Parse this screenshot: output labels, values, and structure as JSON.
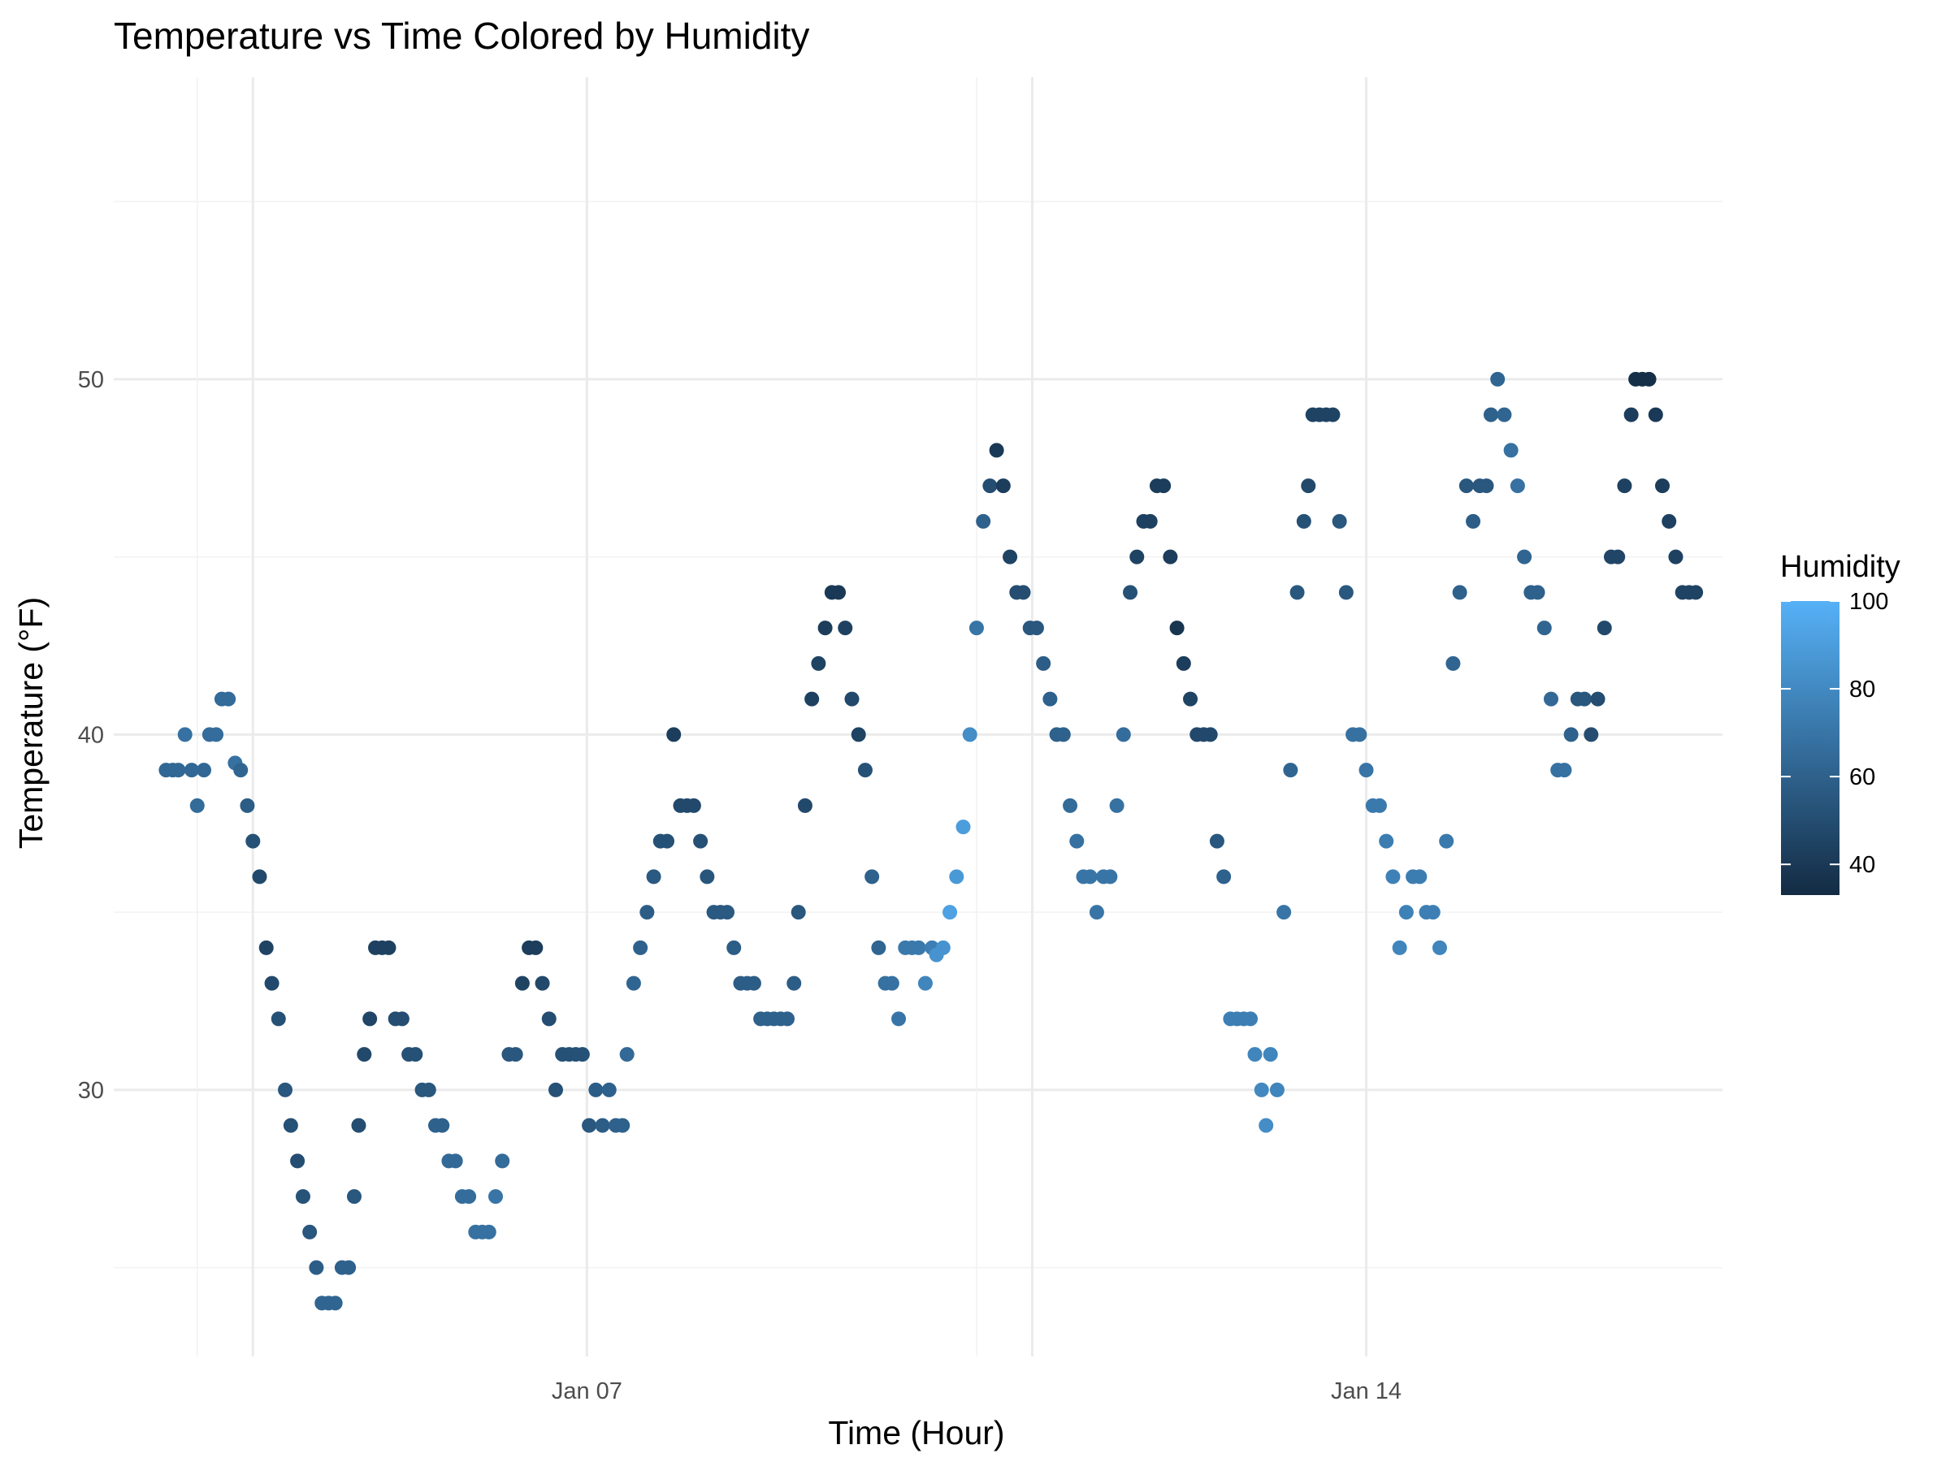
{
  "chart_data": {
    "type": "scatter",
    "title": "Temperature vs Time Colored by Humidity",
    "xlabel": "Time (Hour)",
    "ylabel": "Temperature (°F)",
    "x_ticks": [
      "Jan 07",
      "Jan 14"
    ],
    "y_ticks": [
      30,
      40,
      50
    ],
    "color_legend": {
      "title": "Humidity",
      "ticks": [
        40,
        60,
        80,
        100
      ],
      "range": [
        33,
        100
      ],
      "low_color": "#132B43",
      "high_color": "#56B1F7"
    },
    "grid": true,
    "legend_position": "right",
    "x_unit": "day of January",
    "xlim": [
      2.75,
      17.2
    ],
    "ylim": [
      22.5,
      58.5
    ],
    "points": [
      {
        "x": 3.22,
        "y": 39,
        "h": 63
      },
      {
        "x": 3.28,
        "y": 39,
        "h": 63
      },
      {
        "x": 3.33,
        "y": 39,
        "h": 63
      },
      {
        "x": 3.39,
        "y": 40,
        "h": 68
      },
      {
        "x": 3.45,
        "y": 39,
        "h": 63
      },
      {
        "x": 3.5,
        "y": 38,
        "h": 65
      },
      {
        "x": 3.56,
        "y": 39,
        "h": 63
      },
      {
        "x": 3.61,
        "y": 40,
        "h": 66
      },
      {
        "x": 3.67,
        "y": 40,
        "h": 66
      },
      {
        "x": 3.72,
        "y": 41,
        "h": 65
      },
      {
        "x": 3.78,
        "y": 41,
        "h": 65
      },
      {
        "x": 3.84,
        "y": 39.2,
        "h": 68
      },
      {
        "x": 3.89,
        "y": 39,
        "h": 62
      },
      {
        "x": 3.95,
        "y": 38,
        "h": 58
      },
      {
        "x": 4,
        "y": 37,
        "h": 52
      },
      {
        "x": 4.06,
        "y": 36,
        "h": 48
      },
      {
        "x": 4.12,
        "y": 34,
        "h": 45
      },
      {
        "x": 4.17,
        "y": 33,
        "h": 48
      },
      {
        "x": 4.23,
        "y": 32,
        "h": 52
      },
      {
        "x": 4.29,
        "y": 30,
        "h": 55
      },
      {
        "x": 4.34,
        "y": 29,
        "h": 52
      },
      {
        "x": 4.4,
        "y": 28,
        "h": 50
      },
      {
        "x": 4.45,
        "y": 27,
        "h": 53
      },
      {
        "x": 4.51,
        "y": 26,
        "h": 55
      },
      {
        "x": 4.57,
        "y": 25,
        "h": 58
      },
      {
        "x": 4.62,
        "y": 24,
        "h": 62
      },
      {
        "x": 4.68,
        "y": 24,
        "h": 62
      },
      {
        "x": 4.74,
        "y": 24,
        "h": 62
      },
      {
        "x": 4.8,
        "y": 25,
        "h": 60
      },
      {
        "x": 4.86,
        "y": 25,
        "h": 60
      },
      {
        "x": 4.91,
        "y": 27,
        "h": 55
      },
      {
        "x": 4.95,
        "y": 29,
        "h": 50
      },
      {
        "x": 5,
        "y": 31,
        "h": 48
      },
      {
        "x": 5.05,
        "y": 32,
        "h": 46
      },
      {
        "x": 5.1,
        "y": 34,
        "h": 44
      },
      {
        "x": 5.16,
        "y": 34,
        "h": 44
      },
      {
        "x": 5.22,
        "y": 34,
        "h": 44
      },
      {
        "x": 5.28,
        "y": 32,
        "h": 50
      },
      {
        "x": 5.34,
        "y": 32,
        "h": 50
      },
      {
        "x": 5.4,
        "y": 31,
        "h": 52
      },
      {
        "x": 5.46,
        "y": 31,
        "h": 52
      },
      {
        "x": 5.52,
        "y": 30,
        "h": 55
      },
      {
        "x": 5.58,
        "y": 30,
        "h": 55
      },
      {
        "x": 5.64,
        "y": 29,
        "h": 60
      },
      {
        "x": 5.7,
        "y": 29,
        "h": 60
      },
      {
        "x": 5.76,
        "y": 28,
        "h": 64
      },
      {
        "x": 5.82,
        "y": 28,
        "h": 64
      },
      {
        "x": 5.88,
        "y": 27,
        "h": 66
      },
      {
        "x": 5.94,
        "y": 27,
        "h": 66
      },
      {
        "x": 6,
        "y": 26,
        "h": 68
      },
      {
        "x": 6.06,
        "y": 26,
        "h": 68
      },
      {
        "x": 6.12,
        "y": 26,
        "h": 68
      },
      {
        "x": 6.18,
        "y": 27,
        "h": 70
      },
      {
        "x": 6.24,
        "y": 28,
        "h": 65
      },
      {
        "x": 6.3,
        "y": 31,
        "h": 55
      },
      {
        "x": 6.36,
        "y": 31,
        "h": 55
      },
      {
        "x": 6.42,
        "y": 33,
        "h": 45
      },
      {
        "x": 6.48,
        "y": 34,
        "h": 42
      },
      {
        "x": 6.54,
        "y": 34,
        "h": 42
      },
      {
        "x": 6.6,
        "y": 33,
        "h": 48
      },
      {
        "x": 6.66,
        "y": 32,
        "h": 50
      },
      {
        "x": 6.72,
        "y": 30,
        "h": 52
      },
      {
        "x": 6.78,
        "y": 31,
        "h": 52
      },
      {
        "x": 6.84,
        "y": 31,
        "h": 52
      },
      {
        "x": 6.9,
        "y": 31,
        "h": 52
      },
      {
        "x": 6.96,
        "y": 31,
        "h": 52
      },
      {
        "x": 7.02,
        "y": 29,
        "h": 55
      },
      {
        "x": 7.08,
        "y": 30,
        "h": 58
      },
      {
        "x": 7.14,
        "y": 29,
        "h": 58
      },
      {
        "x": 7.2,
        "y": 30,
        "h": 60
      },
      {
        "x": 7.26,
        "y": 29,
        "h": 60
      },
      {
        "x": 7.32,
        "y": 29,
        "h": 60
      },
      {
        "x": 7.36,
        "y": 31,
        "h": 64
      },
      {
        "x": 7.42,
        "y": 33,
        "h": 62
      },
      {
        "x": 7.48,
        "y": 34,
        "h": 60
      },
      {
        "x": 7.54,
        "y": 35,
        "h": 58
      },
      {
        "x": 7.6,
        "y": 36,
        "h": 56
      },
      {
        "x": 7.66,
        "y": 37,
        "h": 52
      },
      {
        "x": 7.72,
        "y": 37,
        "h": 52
      },
      {
        "x": 7.78,
        "y": 40,
        "h": 42
      },
      {
        "x": 7.84,
        "y": 38,
        "h": 48
      },
      {
        "x": 7.9,
        "y": 38,
        "h": 48
      },
      {
        "x": 7.96,
        "y": 38,
        "h": 48
      },
      {
        "x": 8.02,
        "y": 37,
        "h": 52
      },
      {
        "x": 8.08,
        "y": 36,
        "h": 54
      },
      {
        "x": 8.14,
        "y": 35,
        "h": 56
      },
      {
        "x": 8.2,
        "y": 35,
        "h": 56
      },
      {
        "x": 8.26,
        "y": 35,
        "h": 56
      },
      {
        "x": 8.32,
        "y": 34,
        "h": 58
      },
      {
        "x": 8.38,
        "y": 33,
        "h": 58
      },
      {
        "x": 8.44,
        "y": 33,
        "h": 58
      },
      {
        "x": 8.5,
        "y": 33,
        "h": 58
      },
      {
        "x": 8.56,
        "y": 32,
        "h": 60
      },
      {
        "x": 8.62,
        "y": 32,
        "h": 60
      },
      {
        "x": 8.68,
        "y": 32,
        "h": 60
      },
      {
        "x": 8.74,
        "y": 32,
        "h": 60
      },
      {
        "x": 8.8,
        "y": 32,
        "h": 60
      },
      {
        "x": 8.86,
        "y": 33,
        "h": 58
      },
      {
        "x": 8.9,
        "y": 35,
        "h": 55
      },
      {
        "x": 8.96,
        "y": 38,
        "h": 48
      },
      {
        "x": 9.02,
        "y": 41,
        "h": 44
      },
      {
        "x": 9.08,
        "y": 42,
        "h": 45
      },
      {
        "x": 9.14,
        "y": 43,
        "h": 42
      },
      {
        "x": 9.2,
        "y": 44,
        "h": 40
      },
      {
        "x": 9.26,
        "y": 44,
        "h": 40
      },
      {
        "x": 9.32,
        "y": 43,
        "h": 44
      },
      {
        "x": 9.38,
        "y": 41,
        "h": 48
      },
      {
        "x": 9.44,
        "y": 40,
        "h": 45
      },
      {
        "x": 9.5,
        "y": 39,
        "h": 52
      },
      {
        "x": 9.56,
        "y": 36,
        "h": 60
      },
      {
        "x": 9.62,
        "y": 34,
        "h": 62
      },
      {
        "x": 9.68,
        "y": 33,
        "h": 68
      },
      {
        "x": 9.74,
        "y": 33,
        "h": 68
      },
      {
        "x": 9.8,
        "y": 32,
        "h": 70
      },
      {
        "x": 9.86,
        "y": 34,
        "h": 72
      },
      {
        "x": 9.92,
        "y": 34,
        "h": 72
      },
      {
        "x": 9.98,
        "y": 34,
        "h": 72
      },
      {
        "x": 10.04,
        "y": 33,
        "h": 78
      },
      {
        "x": 10.1,
        "y": 34,
        "h": 75
      },
      {
        "x": 10.14,
        "y": 33.8,
        "h": 85
      },
      {
        "x": 10.2,
        "y": 34,
        "h": 85
      },
      {
        "x": 10.26,
        "y": 35,
        "h": 92
      },
      {
        "x": 10.32,
        "y": 36,
        "h": 88
      },
      {
        "x": 10.38,
        "y": 37.4,
        "h": 90
      },
      {
        "x": 10.44,
        "y": 40,
        "h": 82
      },
      {
        "x": 10.5,
        "y": 43,
        "h": 70
      },
      {
        "x": 10.56,
        "y": 46,
        "h": 60
      },
      {
        "x": 10.62,
        "y": 47,
        "h": 50
      },
      {
        "x": 10.68,
        "y": 48,
        "h": 40
      },
      {
        "x": 10.74,
        "y": 47,
        "h": 42
      },
      {
        "x": 10.8,
        "y": 45,
        "h": 45
      },
      {
        "x": 10.86,
        "y": 44,
        "h": 50
      },
      {
        "x": 10.92,
        "y": 44,
        "h": 50
      },
      {
        "x": 10.98,
        "y": 43,
        "h": 55
      },
      {
        "x": 11.04,
        "y": 43,
        "h": 55
      },
      {
        "x": 11.1,
        "y": 42,
        "h": 58
      },
      {
        "x": 11.16,
        "y": 41,
        "h": 60
      },
      {
        "x": 11.22,
        "y": 40,
        "h": 60
      },
      {
        "x": 11.28,
        "y": 40,
        "h": 60
      },
      {
        "x": 11.34,
        "y": 38,
        "h": 65
      },
      {
        "x": 11.4,
        "y": 37,
        "h": 68
      },
      {
        "x": 11.46,
        "y": 36,
        "h": 70
      },
      {
        "x": 11.52,
        "y": 36,
        "h": 70
      },
      {
        "x": 11.58,
        "y": 35,
        "h": 70
      },
      {
        "x": 11.64,
        "y": 36,
        "h": 70
      },
      {
        "x": 11.7,
        "y": 36,
        "h": 70
      },
      {
        "x": 11.76,
        "y": 38,
        "h": 68
      },
      {
        "x": 11.82,
        "y": 40,
        "h": 66
      },
      {
        "x": 11.88,
        "y": 44,
        "h": 52
      },
      {
        "x": 11.94,
        "y": 45,
        "h": 45
      },
      {
        "x": 12,
        "y": 46,
        "h": 44
      },
      {
        "x": 12.06,
        "y": 46,
        "h": 44
      },
      {
        "x": 12.12,
        "y": 47,
        "h": 42
      },
      {
        "x": 12.18,
        "y": 47,
        "h": 42
      },
      {
        "x": 12.24,
        "y": 45,
        "h": 42
      },
      {
        "x": 12.3,
        "y": 43,
        "h": 38
      },
      {
        "x": 12.36,
        "y": 42,
        "h": 42
      },
      {
        "x": 12.42,
        "y": 41,
        "h": 45
      },
      {
        "x": 12.48,
        "y": 40,
        "h": 48
      },
      {
        "x": 12.54,
        "y": 40,
        "h": 48
      },
      {
        "x": 12.6,
        "y": 40,
        "h": 48
      },
      {
        "x": 12.66,
        "y": 37,
        "h": 55
      },
      {
        "x": 12.72,
        "y": 36,
        "h": 60
      },
      {
        "x": 12.78,
        "y": 32,
        "h": 75
      },
      {
        "x": 12.84,
        "y": 32,
        "h": 75
      },
      {
        "x": 12.9,
        "y": 32,
        "h": 75
      },
      {
        "x": 12.96,
        "y": 32,
        "h": 75
      },
      {
        "x": 13,
        "y": 31,
        "h": 78
      },
      {
        "x": 13.06,
        "y": 30,
        "h": 80
      },
      {
        "x": 13.1,
        "y": 29,
        "h": 82
      },
      {
        "x": 13.14,
        "y": 31,
        "h": 78
      },
      {
        "x": 13.2,
        "y": 30,
        "h": 78
      },
      {
        "x": 13.26,
        "y": 35,
        "h": 70
      },
      {
        "x": 13.32,
        "y": 39,
        "h": 62
      },
      {
        "x": 13.38,
        "y": 44,
        "h": 55
      },
      {
        "x": 13.44,
        "y": 46,
        "h": 52
      },
      {
        "x": 13.48,
        "y": 47,
        "h": 48
      },
      {
        "x": 13.52,
        "y": 49,
        "h": 45
      },
      {
        "x": 13.58,
        "y": 49,
        "h": 45
      },
      {
        "x": 13.64,
        "y": 49,
        "h": 45
      },
      {
        "x": 13.7,
        "y": 49,
        "h": 45
      },
      {
        "x": 13.76,
        "y": 46,
        "h": 55
      },
      {
        "x": 13.82,
        "y": 44,
        "h": 55
      },
      {
        "x": 13.88,
        "y": 40,
        "h": 68
      },
      {
        "x": 13.94,
        "y": 40,
        "h": 68
      },
      {
        "x": 14,
        "y": 39,
        "h": 70
      },
      {
        "x": 14.06,
        "y": 38,
        "h": 72
      },
      {
        "x": 14.12,
        "y": 38,
        "h": 72
      },
      {
        "x": 14.18,
        "y": 37,
        "h": 74
      },
      {
        "x": 14.24,
        "y": 36,
        "h": 76
      },
      {
        "x": 14.3,
        "y": 34,
        "h": 78
      },
      {
        "x": 14.36,
        "y": 35,
        "h": 76
      },
      {
        "x": 14.42,
        "y": 36,
        "h": 74
      },
      {
        "x": 14.48,
        "y": 36,
        "h": 74
      },
      {
        "x": 14.54,
        "y": 35,
        "h": 75
      },
      {
        "x": 14.6,
        "y": 35,
        "h": 75
      },
      {
        "x": 14.66,
        "y": 34,
        "h": 78
      },
      {
        "x": 14.72,
        "y": 37,
        "h": 72
      },
      {
        "x": 14.78,
        "y": 42,
        "h": 62
      },
      {
        "x": 14.84,
        "y": 44,
        "h": 60
      },
      {
        "x": 14.9,
        "y": 47,
        "h": 55
      },
      {
        "x": 14.96,
        "y": 46,
        "h": 58
      },
      {
        "x": 15.02,
        "y": 47,
        "h": 55
      },
      {
        "x": 15.08,
        "y": 47,
        "h": 55
      },
      {
        "x": 15.12,
        "y": 49,
        "h": 60
      },
      {
        "x": 15.18,
        "y": 50,
        "h": 62
      },
      {
        "x": 15.24,
        "y": 49,
        "h": 62
      },
      {
        "x": 15.3,
        "y": 48,
        "h": 68
      },
      {
        "x": 15.36,
        "y": 47,
        "h": 68
      },
      {
        "x": 15.42,
        "y": 45,
        "h": 62
      },
      {
        "x": 15.48,
        "y": 44,
        "h": 60
      },
      {
        "x": 15.54,
        "y": 44,
        "h": 60
      },
      {
        "x": 15.6,
        "y": 43,
        "h": 62
      },
      {
        "x": 15.66,
        "y": 41,
        "h": 64
      },
      {
        "x": 15.72,
        "y": 39,
        "h": 68
      },
      {
        "x": 15.78,
        "y": 39,
        "h": 68
      },
      {
        "x": 15.84,
        "y": 40,
        "h": 60
      },
      {
        "x": 15.9,
        "y": 41,
        "h": 55
      },
      {
        "x": 15.96,
        "y": 41,
        "h": 55
      },
      {
        "x": 16.02,
        "y": 40,
        "h": 50
      },
      {
        "x": 16.08,
        "y": 41,
        "h": 50
      },
      {
        "x": 16.14,
        "y": 43,
        "h": 48
      },
      {
        "x": 16.2,
        "y": 45,
        "h": 46
      },
      {
        "x": 16.26,
        "y": 45,
        "h": 46
      },
      {
        "x": 16.32,
        "y": 47,
        "h": 44
      },
      {
        "x": 16.38,
        "y": 49,
        "h": 42
      },
      {
        "x": 16.42,
        "y": 50,
        "h": 35
      },
      {
        "x": 16.48,
        "y": 50,
        "h": 35
      },
      {
        "x": 16.54,
        "y": 50,
        "h": 35
      },
      {
        "x": 16.6,
        "y": 49,
        "h": 40
      },
      {
        "x": 16.66,
        "y": 47,
        "h": 42
      },
      {
        "x": 16.72,
        "y": 46,
        "h": 44
      },
      {
        "x": 16.78,
        "y": 45,
        "h": 44
      },
      {
        "x": 16.84,
        "y": 44,
        "h": 45
      },
      {
        "x": 16.9,
        "y": 44,
        "h": 45
      },
      {
        "x": 16.96,
        "y": 44,
        "h": 45
      }
    ]
  }
}
